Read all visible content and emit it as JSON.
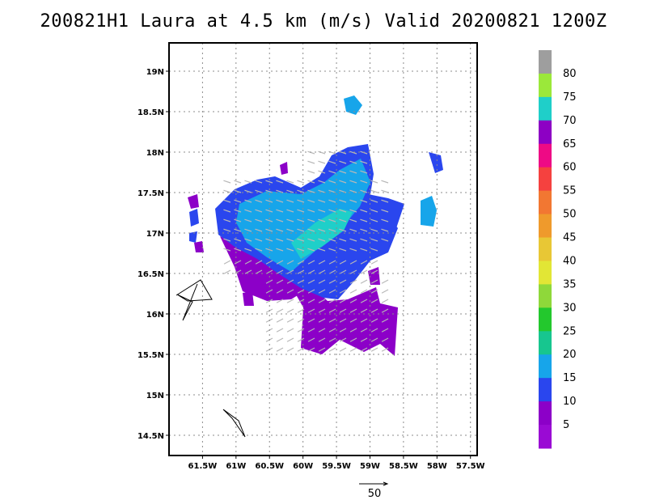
{
  "title": "200821H1 Laura at 4.5 km (m/s) Valid 20200821 1200Z",
  "map": {
    "lat_labels": [
      "19N",
      "18.5N",
      "18N",
      "17.5N",
      "17N",
      "16.5N",
      "16N",
      "15.5N",
      "15N",
      "14.5N"
    ],
    "lat_values": [
      19,
      18.5,
      18,
      17.5,
      17,
      16.5,
      16,
      15.5,
      15,
      14.5
    ],
    "lon_labels": [
      "61.5W",
      "61W",
      "60.5W",
      "60W",
      "59.5W",
      "59W",
      "58.5W",
      "58W",
      "57.5W"
    ],
    "lon_values": [
      -61.5,
      -61,
      -60.5,
      -60,
      -59.5,
      -59,
      -58.5,
      -58,
      -57.5
    ],
    "lon_range": [
      -62.0,
      -57.4
    ],
    "lat_range": [
      14.25,
      19.35
    ],
    "grid": true
  },
  "colorbar": {
    "labels": [
      "80",
      "75",
      "70",
      "65",
      "60",
      "55",
      "50",
      "45",
      "40",
      "35",
      "30",
      "25",
      "20",
      "15",
      "10",
      "5"
    ],
    "colors": [
      "#9e9e9e",
      "#9be83a",
      "#1fcfc9",
      "#8d00c4",
      "#ee0a85",
      "#f5413f",
      "#f27732",
      "#ef9a2c",
      "#e8c735",
      "#e2e635",
      "#8fd83a",
      "#23c82d",
      "#17c68f",
      "#17a5ea",
      "#2a46ee",
      "#8c00c8",
      "#9a0ad4"
    ]
  },
  "vector_key": {
    "label": "50"
  },
  "colors": {
    "purple": "#8c00c8",
    "blue": "#2a46ee",
    "lightblue": "#17a5ea",
    "teal": "#1fcfc9",
    "arrow": "#b8b8b8"
  }
}
